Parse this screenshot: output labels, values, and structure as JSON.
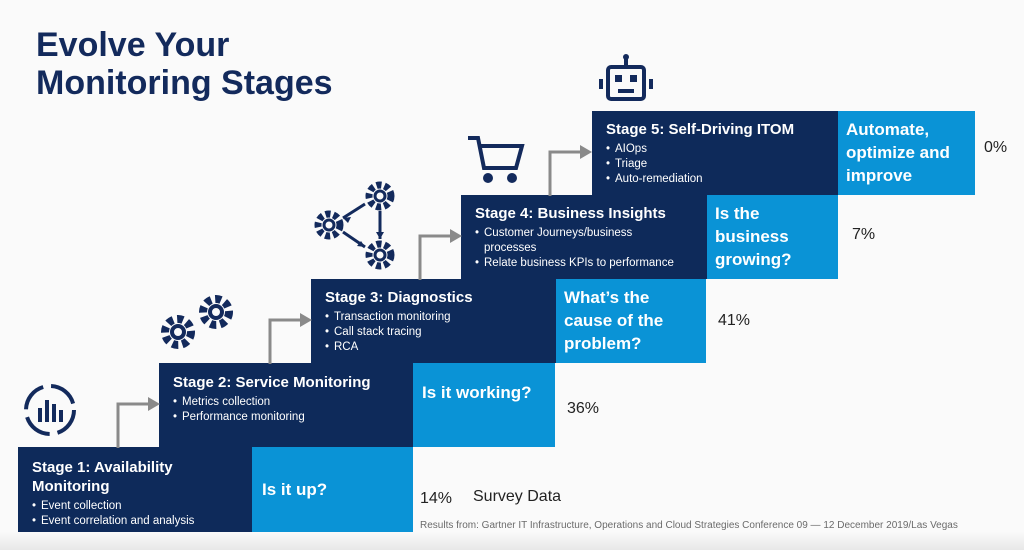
{
  "title": {
    "line1": "Evolve Your",
    "line2": "Monitoring Stages"
  },
  "stages": [
    {
      "title": "Stage 1: Availability Monitoring",
      "bullets": [
        "Event collection",
        "Event correlation and analysis"
      ],
      "question": "Is it up?",
      "percent": "14%",
      "icon": "chart-dial-icon"
    },
    {
      "title": "Stage 2: Service Monitoring",
      "bullets": [
        "Metrics collection",
        "Performance monitoring"
      ],
      "question": "Is it working?",
      "percent": "36%",
      "icon": "gears-icon"
    },
    {
      "title": "Stage 3: Diagnostics",
      "bullets": [
        "Transaction monitoring",
        "Call stack tracing",
        "RCA"
      ],
      "question": "What’s the cause of the problem?",
      "percent": "41%",
      "icon": "gear-network-icon"
    },
    {
      "title": "Stage 4: Business Insights",
      "bullets": [
        "Customer Journeys/business processes",
        "Relate business KPIs to performance"
      ],
      "question": "Is the business growing?",
      "percent": "7%",
      "icon": "shopping-cart-icon"
    },
    {
      "title": "Stage 5: Self-Driving ITOM",
      "bullets": [
        "AIOps",
        "Triage",
        "Auto-remediation"
      ],
      "question": "Automate, optimize and improve",
      "percent": "0%",
      "icon": "robot-icon"
    }
  ],
  "survey_label": "Survey Data",
  "footnote": "Results from: Gartner IT Infrastructure, Operations and Cloud Strategies Conference 09 — 12 December 2019/Las Vegas",
  "colors": {
    "navy": "#0e2a5a",
    "blue": "#0a93d6",
    "title": "#132a5c",
    "arrow": "#8a8a8a"
  }
}
